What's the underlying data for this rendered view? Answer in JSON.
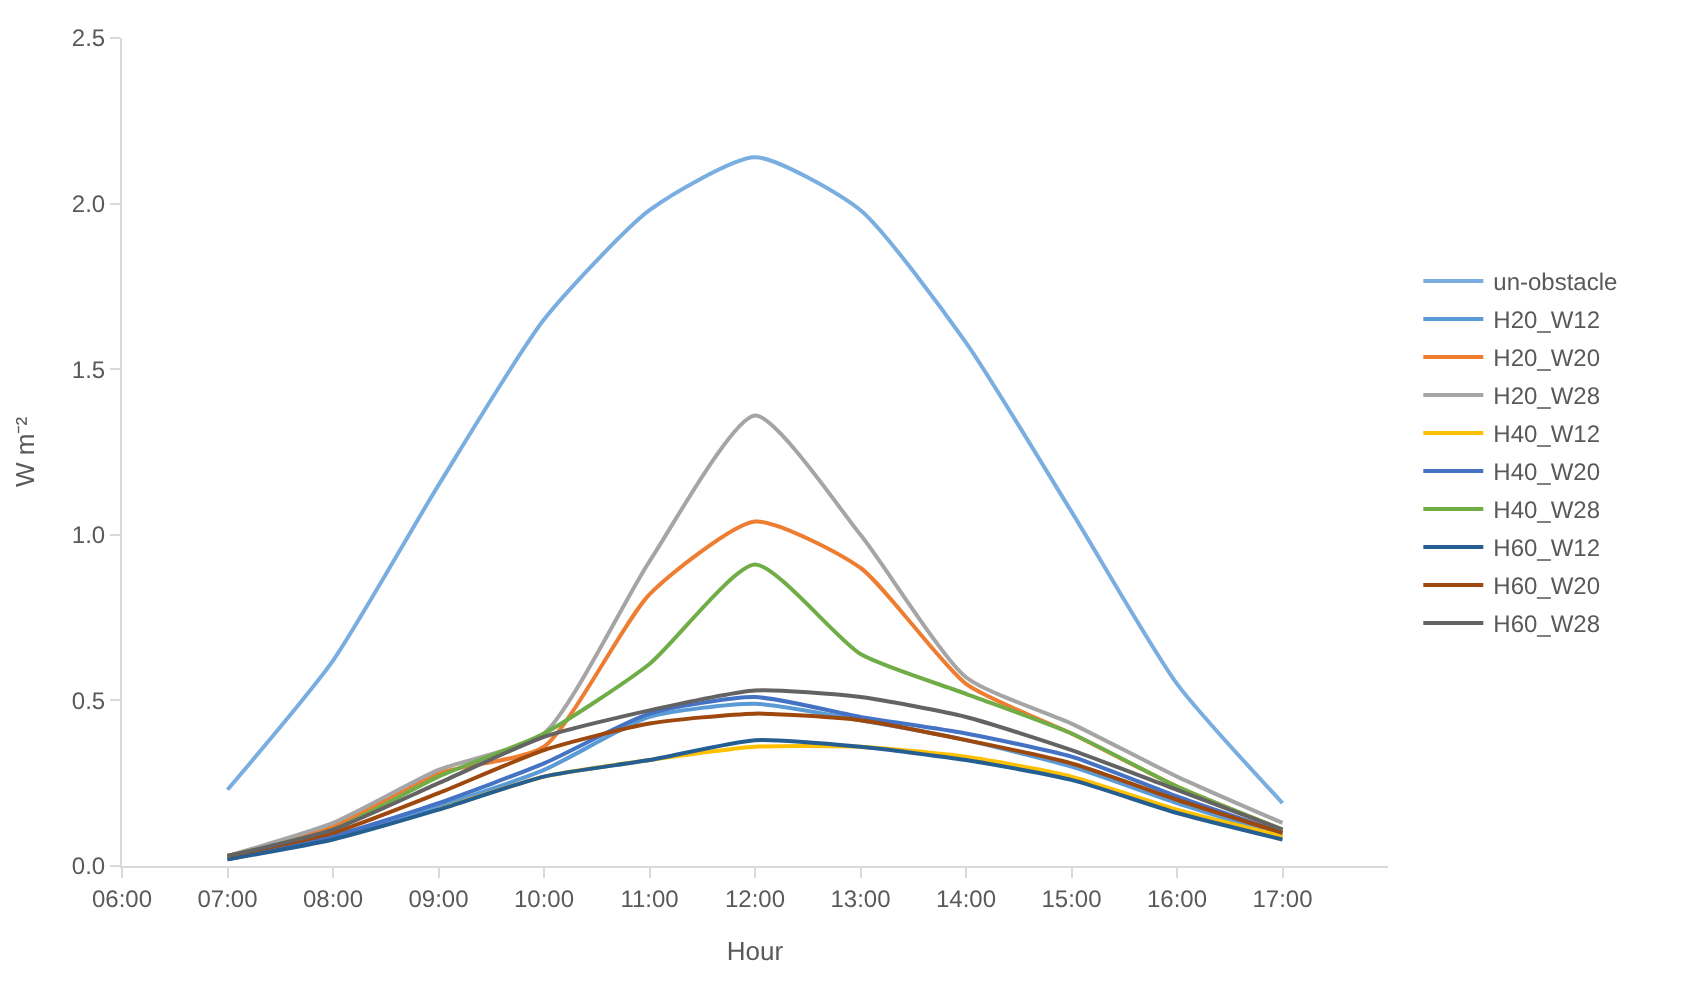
{
  "chart_data": {
    "type": "line",
    "xlabel": "Hour",
    "ylabel": "W m⁻²",
    "x": [
      7,
      8,
      9,
      10,
      11,
      12,
      13,
      14,
      15,
      16,
      17
    ],
    "xlim": [
      6,
      18
    ],
    "xticks": [
      {
        "value": 6,
        "label": "06:00"
      },
      {
        "value": 7,
        "label": "07:00"
      },
      {
        "value": 8,
        "label": "08:00"
      },
      {
        "value": 9,
        "label": "09:00"
      },
      {
        "value": 10,
        "label": "10:00"
      },
      {
        "value": 11,
        "label": "11:00"
      },
      {
        "value": 12,
        "label": "12:00"
      },
      {
        "value": 13,
        "label": "13:00"
      },
      {
        "value": 14,
        "label": "14:00"
      },
      {
        "value": 15,
        "label": "15:00"
      },
      {
        "value": 16,
        "label": "16:00"
      },
      {
        "value": 17,
        "label": "17:00"
      }
    ],
    "ylim": [
      0,
      2.5
    ],
    "yticks": [
      {
        "value": 0,
        "label": "0.0"
      },
      {
        "value": 0.5,
        "label": "0.5"
      },
      {
        "value": 1,
        "label": "1.0"
      },
      {
        "value": 1.5,
        "label": "1.5"
      },
      {
        "value": 2,
        "label": "2.0"
      },
      {
        "value": 2.5,
        "label": "2.5"
      }
    ],
    "grid": false,
    "legend": "right",
    "marker": "none",
    "line_style": "solid",
    "series": [
      {
        "name": "un-obstacle",
        "color": "#7aaee0",
        "values": [
          0.23,
          0.62,
          1.15,
          1.65,
          1.98,
          2.14,
          1.98,
          1.58,
          1.07,
          0.55,
          0.19
        ]
      },
      {
        "name": "H20_W12",
        "color": "#5b9bd5",
        "values": [
          0.02,
          0.09,
          0.18,
          0.29,
          0.45,
          0.49,
          0.44,
          0.38,
          0.3,
          0.19,
          0.09
        ]
      },
      {
        "name": "H20_W20",
        "color": "#ed7d31",
        "values": [
          0.03,
          0.12,
          0.28,
          0.36,
          0.82,
          1.04,
          0.9,
          0.55,
          0.4,
          0.24,
          0.11
        ]
      },
      {
        "name": "H20_W28",
        "color": "#a5a5a5",
        "values": [
          0.03,
          0.13,
          0.29,
          0.4,
          0.92,
          1.36,
          1.0,
          0.57,
          0.43,
          0.27,
          0.13
        ]
      },
      {
        "name": "H40_W12",
        "color": "#ffc000",
        "values": [
          null,
          null,
          0.17,
          0.27,
          0.32,
          0.36,
          0.36,
          0.33,
          0.27,
          0.17,
          0.09
        ]
      },
      {
        "name": "H40_W20",
        "color": "#4472c4",
        "values": [
          0.02,
          0.09,
          0.19,
          0.31,
          0.46,
          0.51,
          0.45,
          0.4,
          0.33,
          0.21,
          0.1
        ]
      },
      {
        "name": "H40_W28",
        "color": "#70ad47",
        "values": [
          0.03,
          0.11,
          0.27,
          0.4,
          0.61,
          0.91,
          0.64,
          0.52,
          0.4,
          0.24,
          0.11
        ]
      },
      {
        "name": "H60_W12",
        "color": "#255e91",
        "values": [
          0.02,
          0.08,
          0.17,
          0.27,
          0.32,
          0.38,
          0.36,
          0.32,
          0.26,
          0.16,
          0.08
        ]
      },
      {
        "name": "H60_W20",
        "color": "#9e480e",
        "values": [
          0.03,
          0.1,
          0.22,
          0.35,
          0.43,
          0.46,
          0.44,
          0.38,
          0.31,
          0.2,
          0.1
        ]
      },
      {
        "name": "H60_W28",
        "color": "#636363",
        "values": [
          0.03,
          0.11,
          0.25,
          0.39,
          0.47,
          0.53,
          0.51,
          0.45,
          0.35,
          0.23,
          0.11
        ]
      }
    ]
  }
}
